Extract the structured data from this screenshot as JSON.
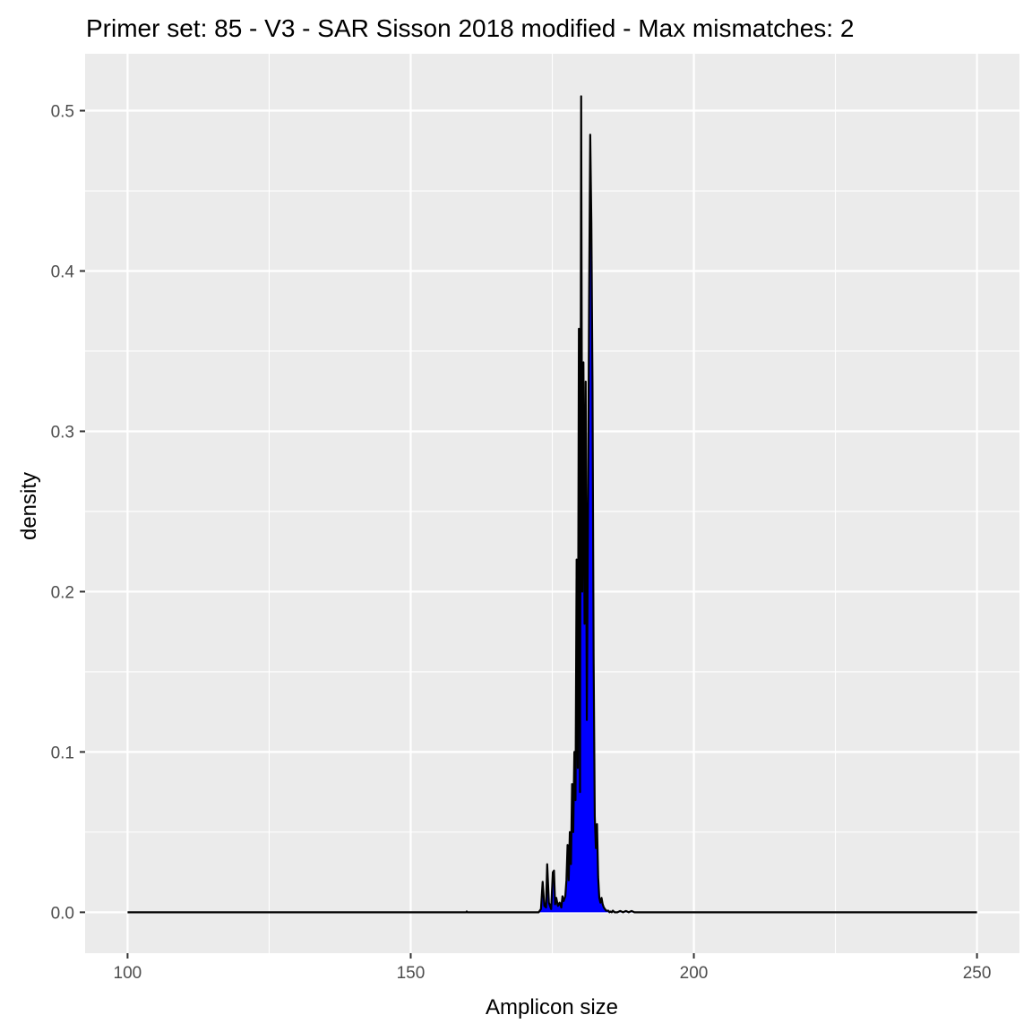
{
  "chart_data": {
    "type": "area",
    "title": "Primer set: 85 - V3 - SAR Sisson 2018 modified - Max mismatches: 2",
    "xlabel": "Amplicon size",
    "ylabel": "density",
    "xlim": [
      92.5,
      257.5
    ],
    "ylim": [
      -0.0255,
      0.5355
    ],
    "x_ticks": [
      100,
      150,
      200,
      250
    ],
    "x_tick_labels": [
      "100",
      "150",
      "200",
      "250"
    ],
    "y_ticks": [
      0.0,
      0.1,
      0.2,
      0.3,
      0.4,
      0.5
    ],
    "y_tick_labels": [
      "0.0",
      "0.1",
      "0.2",
      "0.3",
      "0.4",
      "0.5"
    ],
    "grid": true,
    "fill_color": "#0000FF",
    "line_color": "#000000",
    "panel_color": "#EBEBEB",
    "grid_color": "#FFFFFF",
    "series": [
      {
        "x": [
          100,
          159.8,
          159.9,
          160,
          160.1,
          168,
          172.6,
          173,
          173.3,
          173.6,
          173.9,
          174.1,
          174.4,
          174.6,
          174.8,
          175.1,
          175.3,
          175.5,
          175.7,
          176,
          176.3,
          176.6,
          176.8,
          177,
          177.3,
          177.5,
          177.7,
          177.9,
          178.1,
          178.3,
          178.5,
          178.7,
          178.9,
          179.1,
          179.3,
          179.5,
          179.7,
          179.9,
          180.1,
          180.3,
          180.5,
          180.7,
          180.9,
          181.1,
          181.3,
          181.5,
          181.7,
          181.9,
          182.1,
          182.3,
          182.5,
          182.7,
          182.9,
          183.1,
          183.3,
          183.5,
          183.7,
          183.9,
          184.1,
          184.3,
          184.5,
          184.7,
          184.9,
          185.1,
          185.3,
          185.5,
          185.7,
          186,
          186.5,
          187,
          187.5,
          188,
          188.5,
          189,
          189.5,
          190,
          195,
          250
        ],
        "y": [
          0,
          0,
          0.0005,
          0,
          0,
          0,
          0,
          0.002,
          0.019,
          0.004,
          0.003,
          0.03,
          0.006,
          0.004,
          0.002,
          0.025,
          0.026,
          0.005,
          0.009,
          0.004,
          0.006,
          0.003,
          0.01,
          0.007,
          0.01,
          0.02,
          0.042,
          0.02,
          0.05,
          0.03,
          0.08,
          0.05,
          0.1,
          0.07,
          0.22,
          0.09,
          0.364,
          0.075,
          0.509,
          0.2,
          0.343,
          0.18,
          0.331,
          0.12,
          0.24,
          0.38,
          0.485,
          0.43,
          0.33,
          0.16,
          0.06,
          0.04,
          0.055,
          0.022,
          0.009,
          0.006,
          0.009,
          0.005,
          0.003,
          0.002,
          0.001,
          0.001,
          0.001,
          0,
          0.0005,
          0,
          0.001,
          0,
          0,
          0.0008,
          0,
          0.0008,
          0,
          0.0008,
          0,
          0,
          0,
          0
        ]
      }
    ]
  }
}
